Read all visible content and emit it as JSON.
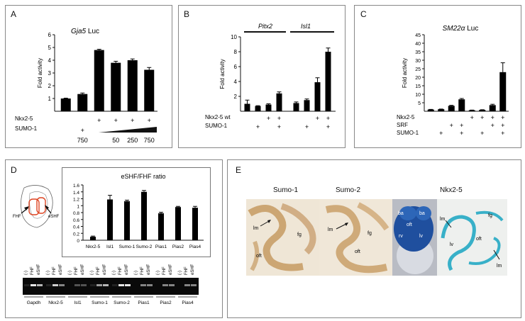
{
  "panels": {
    "A": {
      "letter": "A",
      "title_gene": "Gja5",
      "title_suffix": " Luc",
      "row1_label": "Nkx2-5",
      "row2_label": "SUMO-1",
      "row1_marks": [
        "",
        "",
        "+",
        "+",
        "+",
        "+"
      ],
      "row2_marks": [
        "",
        "+",
        "",
        "",
        "",
        ""
      ],
      "row2_doses": [
        "750",
        "50",
        "250",
        "750"
      ]
    },
    "B": {
      "letter": "B",
      "group1": "Pitx2",
      "group2": "Isl1",
      "row1_label": "Nkx2-5 wt",
      "row2_label": "SUMO-1",
      "row1_marks": [
        "",
        "",
        "+",
        "+",
        "",
        "",
        "+",
        "+"
      ],
      "row2_marks": [
        "",
        "+",
        "",
        "+",
        "",
        "+",
        "",
        "+"
      ]
    },
    "C": {
      "letter": "C",
      "title_gene": "SM22α",
      "title_suffix": " Luc",
      "row1_label": "Nkx2-5",
      "row2_label": "SRF",
      "row3_label": "SUMO-1",
      "row1_marks": [
        "",
        "",
        "",
        "",
        "+",
        "+",
        "+",
        "+"
      ],
      "row2_marks": [
        "",
        "",
        "+",
        "+",
        "",
        "",
        "+",
        "+"
      ],
      "row3_marks": [
        "",
        "+",
        "",
        "+",
        "",
        "+",
        "",
        "+"
      ]
    },
    "D": {
      "letter": "D",
      "fhf_label": "FHF",
      "eshf_label": "eSHF",
      "gel_top_labels": [
        "(-)",
        "FHF",
        "eSHF"
      ],
      "gel_groups": [
        "Gapdh",
        "Nkx2-5",
        "Isl1",
        "Sumo-1",
        "Sumo-2",
        "Pias1",
        "Pias2",
        "Pias4"
      ]
    },
    "E": {
      "letter": "E",
      "photo_titles": [
        "Sumo-1",
        "Sumo-2",
        "Nkx2-5"
      ],
      "photo1_labels": [
        "lm",
        "fg",
        "oft"
      ],
      "photo2_labels": [
        "lm",
        "fg",
        "oft"
      ],
      "photo3_labels": [
        "ba",
        "ba",
        "oft",
        "rv",
        "lv"
      ],
      "photo4_labels": [
        "fg",
        "lm",
        "oft",
        "lv",
        "lm"
      ]
    }
  },
  "chart_data": [
    {
      "panel": "A",
      "type": "bar",
      "title": "Gja5 Luc",
      "ylabel": "Fold activity",
      "ylim": [
        0,
        6
      ],
      "yticks": [
        1,
        2,
        3,
        4,
        5,
        6
      ],
      "values": [
        1.0,
        1.35,
        4.8,
        3.8,
        4.0,
        3.25
      ],
      "errors": [
        0.03,
        0.08,
        0.06,
        0.12,
        0.1,
        0.18
      ]
    },
    {
      "panel": "B",
      "type": "bar",
      "ylabel": "Fold activity",
      "ylim": [
        0,
        10
      ],
      "yticks": [
        2,
        4,
        6,
        8,
        10
      ],
      "values": [
        1.0,
        0.7,
        0.9,
        2.4,
        1.1,
        1.5,
        3.9,
        8.0
      ],
      "errors": [
        0.5,
        0.05,
        0.1,
        0.2,
        0.15,
        0.15,
        0.6,
        0.5
      ]
    },
    {
      "panel": "C",
      "type": "bar",
      "title": "SM22α Luc",
      "ylabel": "Fold activity",
      "ylim": [
        0,
        45
      ],
      "yticks": [
        5,
        10,
        15,
        20,
        25,
        30,
        35,
        40,
        45
      ],
      "values": [
        1.0,
        1.2,
        3.2,
        7.0,
        0.6,
        0.8,
        3.6,
        23.0
      ],
      "errors": [
        0.1,
        0.1,
        0.3,
        0.5,
        0.1,
        0.1,
        0.5,
        5.5
      ]
    },
    {
      "panel": "D",
      "type": "bar",
      "title": "eSHF/FHF ratio",
      "ylim": [
        0,
        1.6
      ],
      "yticks": [
        0,
        0.2,
        0.4,
        0.6,
        0.8,
        1,
        1.2,
        1.4,
        1.6
      ],
      "categories": [
        "Nkx2-5",
        "Isl1",
        "Sumo-1",
        "Sumo-2",
        "Pias1",
        "Pias2",
        "Pias4"
      ],
      "values": [
        0.1,
        1.18,
        1.13,
        1.4,
        0.78,
        0.96,
        0.94
      ],
      "errors": [
        0.02,
        0.12,
        0.03,
        0.04,
        0.03,
        0.02,
        0.04
      ]
    }
  ]
}
